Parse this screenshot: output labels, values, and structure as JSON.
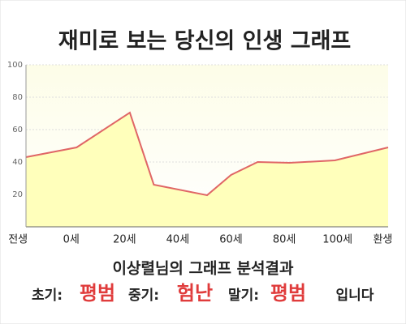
{
  "chart_data": {
    "type": "area",
    "title": "재미로 보는 당신의 인생 그래프",
    "x": [
      -17,
      2,
      22,
      31,
      51,
      60,
      70,
      82,
      99,
      119
    ],
    "values": [
      43,
      49,
      70.5,
      26,
      19.5,
      32,
      40,
      39.5,
      41,
      49
    ],
    "line_color": "#e06666",
    "fill_color": "#ffffbb",
    "xlim": [
      -17,
      119
    ],
    "xticks": [
      {
        "value": -20,
        "label": "전생"
      },
      {
        "value": 0,
        "label": "0세"
      },
      {
        "value": 20,
        "label": "20세"
      },
      {
        "value": 40,
        "label": "40세"
      },
      {
        "value": 60,
        "label": "60세"
      },
      {
        "value": 80,
        "label": "80세"
      },
      {
        "value": 100,
        "label": "100세"
      },
      {
        "value": 117,
        "label": "환생"
      }
    ],
    "ylim": [
      0,
      100
    ],
    "yticks": [
      20,
      40,
      60,
      80,
      100
    ],
    "grid": true,
    "result": {
      "heading": "이상렬님의 그래프 분석결과",
      "early_label": "초기:",
      "early": "평범",
      "middle_label": "중기:",
      "middle": "험난",
      "late_label": "말기:",
      "late": "평범",
      "ending": "입니다"
    }
  }
}
